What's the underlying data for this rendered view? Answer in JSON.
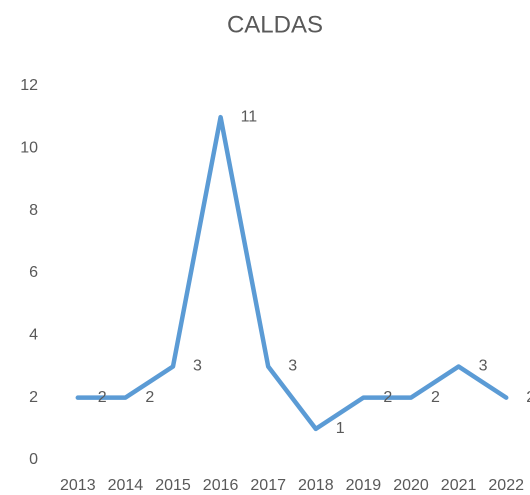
{
  "chart_data": {
    "type": "line",
    "title": "CALDAS",
    "categories": [
      "2013",
      "2014",
      "2015",
      "2016",
      "2017",
      "2018",
      "2019",
      "2020",
      "2021",
      "2022"
    ],
    "series": [
      {
        "name": "CALDAS",
        "color": "#5b9bd5",
        "values": [
          2,
          2,
          3,
          11,
          3,
          1,
          2,
          2,
          3,
          2
        ]
      }
    ],
    "ylim": [
      0,
      12
    ],
    "yticks": [
      0,
      2,
      4,
      6,
      8,
      10,
      12
    ],
    "grid": false,
    "data_labels": true
  }
}
